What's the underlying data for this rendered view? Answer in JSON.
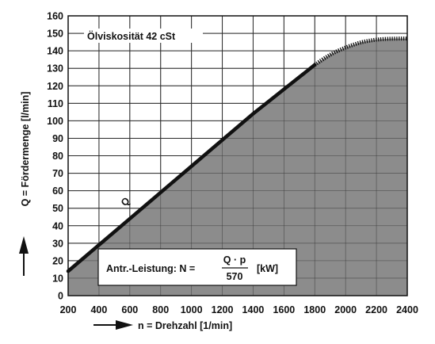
{
  "chart_data": {
    "type": "area",
    "title": "",
    "xlabel": "n = Drehzahl [1/min]",
    "ylabel": "Q = Fördermenge [l/min]",
    "xlim": [
      200,
      2400
    ],
    "ylim": [
      0,
      160
    ],
    "x_ticks": [
      200,
      400,
      600,
      800,
      1000,
      1200,
      1400,
      1600,
      1800,
      2000,
      2200,
      2400
    ],
    "y_ticks": [
      0,
      10,
      20,
      30,
      40,
      50,
      60,
      70,
      80,
      90,
      100,
      110,
      120,
      130,
      140,
      150,
      160
    ],
    "grid": true,
    "series": [
      {
        "name": "Q",
        "style": "solid",
        "x": [
          200,
          400,
          600,
          800,
          1000,
          1200,
          1400,
          1600,
          1800
        ],
        "y": [
          14,
          29,
          44,
          59,
          74,
          89,
          104,
          118,
          132
        ]
      },
      {
        "name": "",
        "style": "dotted",
        "x": [
          1800,
          1900,
          2000,
          2100,
          2200,
          2300,
          2400
        ],
        "y": [
          132,
          138,
          142,
          145,
          146.5,
          147,
          147
        ]
      }
    ],
    "fill_color": "#8c8c8c",
    "line_color": "#111111",
    "annotations": {
      "viscosity": "Ölviskosität 42 cSt",
      "power_prefix": "Antr.-Leistung: N =",
      "power_numerator": "Q · p",
      "power_denominator": "570",
      "power_unit": "[kW]"
    }
  }
}
